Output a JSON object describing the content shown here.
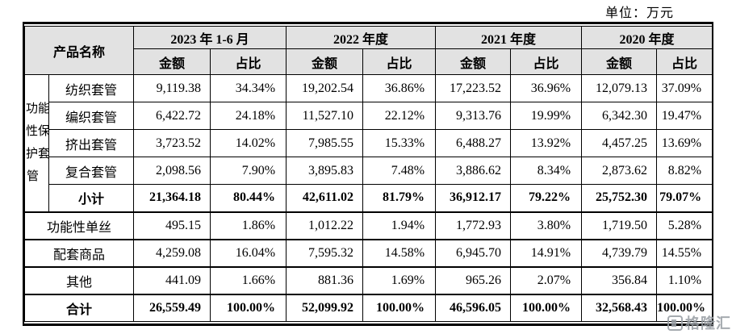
{
  "unit_label": "单位：万元",
  "watermark": {
    "text": "格隆汇"
  },
  "colors": {
    "header_bg": "#e2e2e2",
    "border": "#000000",
    "watermark_gray": "#969ca2"
  },
  "table": {
    "name_header": "产品名称",
    "amount_header": "金额",
    "ratio_header": "占比",
    "periods": [
      "2023 年 1-6 月",
      "2022 年度",
      "2021 年度",
      "2020 年度"
    ],
    "group_label": "功能性保护套管",
    "rows": [
      {
        "name": "纺织套管",
        "group": true,
        "bold": false,
        "section": false,
        "cells": [
          "9,119.38",
          "34.34%",
          "19,202.54",
          "36.86%",
          "17,223.52",
          "36.96%",
          "12,079.13",
          "37.09%"
        ]
      },
      {
        "name": "编织套管",
        "group": true,
        "bold": false,
        "section": false,
        "cells": [
          "6,422.72",
          "24.18%",
          "11,527.10",
          "22.12%",
          "9,313.76",
          "19.99%",
          "6,342.30",
          "19.47%"
        ]
      },
      {
        "name": "挤出套管",
        "group": true,
        "bold": false,
        "section": false,
        "cells": [
          "3,723.52",
          "14.02%",
          "7,985.55",
          "15.33%",
          "6,488.27",
          "13.92%",
          "4,457.25",
          "13.69%"
        ]
      },
      {
        "name": "复合套管",
        "group": true,
        "bold": false,
        "section": false,
        "cells": [
          "2,098.56",
          "7.90%",
          "3,895.83",
          "7.48%",
          "3,886.62",
          "8.34%",
          "2,873.62",
          "8.82%"
        ]
      },
      {
        "name": "小计",
        "group": true,
        "bold": true,
        "section": false,
        "cells": [
          "21,364.18",
          "80.44%",
          "42,611.02",
          "81.79%",
          "36,912.17",
          "79.22%",
          "25,752.30",
          "79.07%"
        ]
      },
      {
        "name": "功能性单丝",
        "group": false,
        "bold": false,
        "section": true,
        "cells": [
          "495.15",
          "1.86%",
          "1,012.22",
          "1.94%",
          "1,772.93",
          "3.80%",
          "1,719.50",
          "5.28%"
        ]
      },
      {
        "name": "配套商品",
        "group": false,
        "bold": false,
        "section": true,
        "cells": [
          "4,259.08",
          "16.04%",
          "7,595.32",
          "14.58%",
          "6,945.70",
          "14.91%",
          "4,739.79",
          "14.55%"
        ]
      },
      {
        "name": "其他",
        "group": false,
        "bold": false,
        "section": true,
        "cells": [
          "441.09",
          "1.66%",
          "881.36",
          "1.69%",
          "965.26",
          "2.07%",
          "356.84",
          "1.10%"
        ]
      },
      {
        "name": "合计",
        "group": false,
        "bold": true,
        "section": true,
        "cells": [
          "26,559.49",
          "100.00%",
          "52,099.92",
          "100.00%",
          "46,596.05",
          "100.00%",
          "32,568.43",
          "100.00%"
        ]
      }
    ]
  }
}
